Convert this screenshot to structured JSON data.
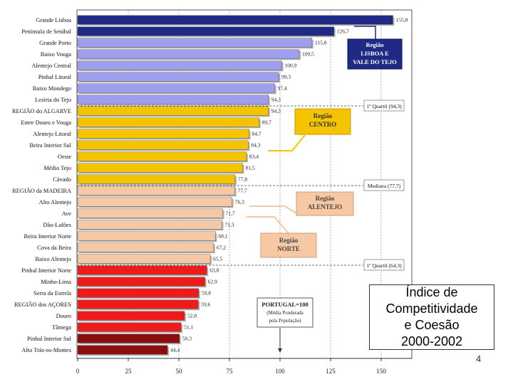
{
  "chart_data": {
    "type": "bar",
    "orientation": "horizontal",
    "categories": [
      "Grande Lisboa",
      "Península de Setúbal",
      "Grande Porto",
      "Baixo Vouga",
      "Alentejo Central",
      "Pinhal Litoral",
      "Baixo Mondego",
      "Lezíria do Tejo",
      "REGIÃO do ALGARVE",
      "Entre Douro e Vouga",
      "Alentejo Litoral",
      "Beira Interior Sul",
      "Oeste",
      "Médio Tejo",
      "Cávado",
      "REGIÃO da MADEIRA",
      "Alto Alentejo",
      "Ave",
      "Dão-Lafões",
      "Beira Interior Norte",
      "Cova da Beira",
      "Baixo Alentejo",
      "Pinhal Interior Norte",
      "Minho-Lima",
      "Serra da Estrela",
      "REGIÃO dos AÇORES",
      "Douro",
      "Tâmega",
      "Pinhal Interior Sul",
      "Alto Trás-os-Montes"
    ],
    "values": [
      155.8,
      126.7,
      115.8,
      109.5,
      100.9,
      99.3,
      97.4,
      94.3,
      94.3,
      89.7,
      84.7,
      84.3,
      83.4,
      81.5,
      77.8,
      77.7,
      76.3,
      71.7,
      71.3,
      68.1,
      67.2,
      65.5,
      63.8,
      62.9,
      59.8,
      59.6,
      52.8,
      51.1,
      50.3,
      44.4
    ],
    "value_labels": [
      "155,8",
      "126,7",
      "115,8",
      "109,5",
      "100,9",
      "99,3",
      "97,4",
      "94,3",
      "94,3",
      "89,7",
      "84,7",
      "84,3",
      "83,4",
      "81,5",
      "77,8",
      "77,7",
      "76,3",
      "71,7",
      "71,3",
      "68,1",
      "67,2",
      "65,5",
      "63,8",
      "62,9",
      "59,8",
      "59,6",
      "52,8",
      "51,1",
      "50,3",
      "44,4"
    ],
    "groups": [
      "lisboa",
      "lisboa",
      "norte_top",
      "centro_top",
      "alentejo_top",
      "centro_top",
      "centro_top",
      "alentejo_top",
      "algarve",
      "norte_mid",
      "alentejo_mid",
      "centro_mid",
      "centro_mid",
      "centro_mid",
      "norte_mid",
      "madeira",
      "alentejo_low",
      "norte_low",
      "centro_low",
      "centro_low",
      "centro_low",
      "alentejo_low",
      "centro_bot",
      "norte_bot",
      "centro_bot",
      "acores",
      "norte_bot",
      "norte_bot",
      "centro_dark",
      "norte_dark"
    ],
    "group_colors": {
      "lisboa": "#1f2a86",
      "norte_top": "#9f9ff0",
      "centro_top": "#9f9ff0",
      "alentejo_top": "#9f9ff0",
      "algarve": "#f5c400",
      "norte_mid": "#f5c400",
      "alentejo_mid": "#f5c400",
      "centro_mid": "#f5c400",
      "madeira": "#f6c9a4",
      "alentejo_low": "#f6c9a4",
      "norte_low": "#f6c9a4",
      "centro_low": "#f6c9a4",
      "centro_bot": "#ee1b1b",
      "norte_bot": "#ee1b1b",
      "acores": "#ee1b1b",
      "centro_dark": "#8b0d0d",
      "norte_dark": "#8b0d0d"
    },
    "xlim": [
      0,
      160
    ],
    "xticks": [
      0,
      25,
      50,
      75,
      100,
      125,
      150
    ],
    "reference_lines": [
      {
        "label": "1º Quartil (94,3)",
        "after_index": 8
      },
      {
        "label": "Mediana (77,7)",
        "after_index": 15
      },
      {
        "label": "1º Quartil (64,3)",
        "after_index": 22
      }
    ],
    "portugal_value": 100,
    "annotations": {
      "lisboa": [
        "Região",
        "LISBOA E",
        "VALE DO TEJO"
      ],
      "centro": [
        "Região",
        "CENTRO"
      ],
      "alentejo": [
        "Região",
        "ALENTEJO"
      ],
      "norte": [
        "Região",
        "NORTE"
      ],
      "portugal": [
        "PORTUGAL=100",
        "(Média Ponderada",
        "pela População)"
      ]
    }
  },
  "caption": {
    "line1": "Índice de",
    "line2": "Competitividade",
    "line3": "e Coesão",
    "line4": "2000-2002"
  },
  "page_number": "4"
}
